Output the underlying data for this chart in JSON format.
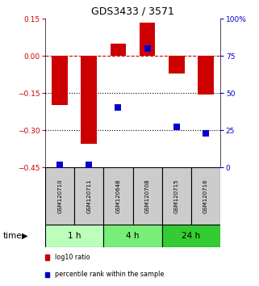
{
  "title": "GDS3433 / 3571",
  "samples": [
    "GSM120710",
    "GSM120711",
    "GSM120648",
    "GSM120708",
    "GSM120715",
    "GSM120716"
  ],
  "log10_ratio": [
    -0.2,
    -0.355,
    0.05,
    0.133,
    -0.07,
    -0.155
  ],
  "percentile_rank": [
    1.5,
    1.5,
    40,
    80,
    27,
    23
  ],
  "bar_color": "#cc0000",
  "dot_color": "#0000cc",
  "left_ylim": [
    -0.45,
    0.15
  ],
  "right_ylim": [
    0,
    100
  ],
  "left_yticks": [
    -0.45,
    -0.3,
    -0.15,
    0.0,
    0.15
  ],
  "right_yticks": [
    0,
    25,
    50,
    75,
    100
  ],
  "right_yticklabels": [
    "0",
    "25",
    "50",
    "75",
    "100%"
  ],
  "dotted_lines": [
    -0.15,
    -0.3
  ],
  "time_groups": [
    {
      "label": "1 h",
      "indices": [
        0,
        1
      ],
      "color": "#bbffbb"
    },
    {
      "label": "4 h",
      "indices": [
        2,
        3
      ],
      "color": "#77ee77"
    },
    {
      "label": "24 h",
      "indices": [
        4,
        5
      ],
      "color": "#33cc33"
    }
  ],
  "time_label": "time",
  "legend": [
    {
      "label": "log10 ratio",
      "color": "#cc0000"
    },
    {
      "label": "percentile rank within the sample",
      "color": "#0000cc"
    }
  ],
  "bar_width": 0.55,
  "dot_size": 28,
  "background_color": "#ffffff"
}
